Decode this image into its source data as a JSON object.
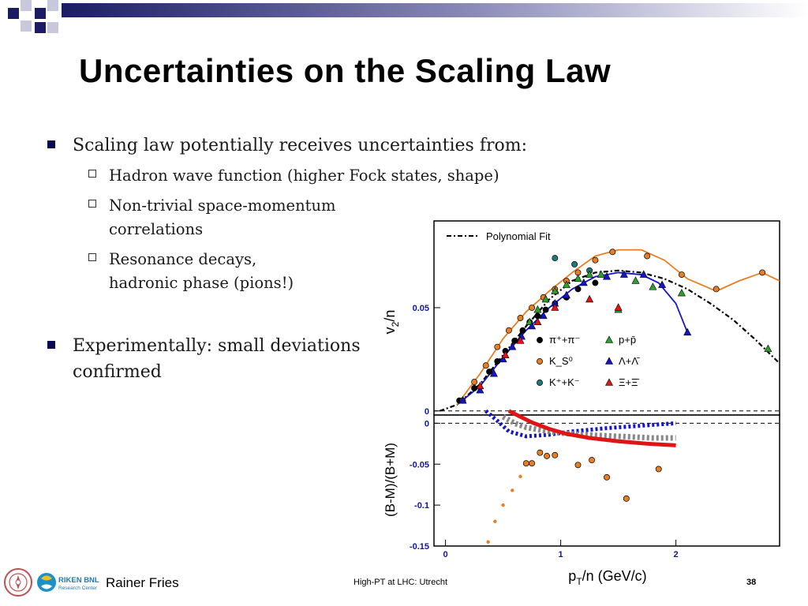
{
  "slide": {
    "title": "Uncertainties on the Scaling Law",
    "bullets": [
      {
        "text": "Scaling law potentially receives uncertainties from:",
        "subs": [
          "Hadron wave function (higher Fock states, shape)",
          [
            "Non-trivial space-momentum",
            "correlations"
          ],
          [
            "Resonance decays,",
            "hadronic phase (pions!)"
          ]
        ]
      },
      {
        "text": [
          "Experimentally: small deviations",
          "confirmed"
        ]
      }
    ]
  },
  "footer": {
    "author": "Rainer Fries",
    "conference": "High-PT at LHC: Utrecht",
    "page": "38",
    "logo_text": "RIKEN BNL",
    "logo_sub": "Research Center"
  },
  "colors": {
    "navy": "#1c1c64",
    "bullet": "#0a0a50",
    "orange": "#e87d22",
    "blue": "#1414c8",
    "green": "#2ca02c",
    "red": "#e01414",
    "teal": "#1e7a78"
  },
  "chart_data": [
    {
      "type": "scatter",
      "panel": "top",
      "ylabel": "v2/n",
      "xlim": [
        -0.1,
        2.9
      ],
      "ylim": [
        -0.002,
        0.092
      ],
      "yticks": [
        0,
        0.05
      ],
      "ytick_labels": [
        "0",
        "0.05"
      ],
      "legend": {
        "fit_label": "Polynomial Fit",
        "entries": [
          "π⁺+π⁻",
          "K_S⁰",
          "K⁺+K⁻",
          "p+p̄",
          "Λ+Λ̄",
          "Ξ+Ξ̄"
        ]
      },
      "series": [
        {
          "name": "π⁺+π⁻",
          "marker": "circle",
          "color": "#000000",
          "x": [
            0.12,
            0.25,
            0.38,
            0.45,
            0.52,
            0.6,
            0.67,
            0.73,
            0.8,
            0.87,
            0.95,
            1.05,
            1.15,
            1.3
          ],
          "y": [
            0.005,
            0.011,
            0.019,
            0.024,
            0.029,
            0.034,
            0.039,
            0.043,
            0.046,
            0.049,
            0.052,
            0.055,
            0.059,
            0.062
          ]
        },
        {
          "name": "K_S⁰",
          "marker": "circle",
          "color": "#e87d22",
          "x": [
            0.15,
            0.25,
            0.35,
            0.45,
            0.55,
            0.65,
            0.75,
            0.85,
            0.95,
            1.05,
            1.15,
            1.3,
            1.45,
            1.75,
            2.05,
            2.35,
            2.75
          ],
          "y": [
            0.005,
            0.014,
            0.022,
            0.031,
            0.039,
            0.045,
            0.05,
            0.055,
            0.059,
            0.063,
            0.067,
            0.073,
            0.077,
            0.075,
            0.066,
            0.059,
            0.067
          ]
        },
        {
          "name": "K⁺+K⁻",
          "marker": "circle",
          "color": "#1e7a78",
          "x": [
            0.95,
            1.12,
            1.25
          ],
          "y": [
            0.074,
            0.071,
            0.068
          ]
        },
        {
          "name": "p+p̄",
          "marker": "triangle",
          "color": "#2ca02c",
          "x": [
            0.73,
            0.8,
            0.87,
            0.95,
            1.05,
            1.15,
            1.25,
            1.35,
            1.5,
            1.65,
            1.8,
            2.05,
            2.8
          ],
          "y": [
            0.043,
            0.049,
            0.054,
            0.058,
            0.061,
            0.064,
            0.066,
            0.066,
            0.049,
            0.063,
            0.06,
            0.057,
            0.03
          ]
        },
        {
          "name": "Λ+Λ̄",
          "marker": "triangle",
          "color": "#1414c8",
          "x": [
            0.15,
            0.3,
            0.42,
            0.5,
            0.58,
            0.66,
            0.75,
            0.85,
            0.95,
            1.05,
            1.2,
            1.4,
            1.55,
            1.72,
            1.88,
            2.1
          ],
          "y": [
            0.005,
            0.01,
            0.018,
            0.025,
            0.031,
            0.036,
            0.041,
            0.046,
            0.052,
            0.056,
            0.062,
            0.065,
            0.066,
            0.066,
            0.061,
            0.038
          ]
        },
        {
          "name": "Ξ+Ξ̄",
          "marker": "triangle",
          "color": "#e01414",
          "x": [
            0.3,
            0.52,
            0.65,
            0.8,
            0.95,
            1.25,
            1.5
          ],
          "y": [
            0.012,
            0.027,
            0.034,
            0.043,
            0.05,
            0.054,
            0.05
          ]
        }
      ],
      "curves": [
        {
          "name": "Polynomial Fit",
          "style": "dash-dot",
          "color": "#000000",
          "x": [
            -0.05,
            0.1,
            0.3,
            0.5,
            0.7,
            0.9,
            1.1,
            1.3,
            1.5,
            1.7,
            1.9,
            2.1,
            2.3,
            2.5,
            2.7,
            2.9
          ],
          "y": [
            0,
            0.003,
            0.013,
            0.027,
            0.041,
            0.054,
            0.063,
            0.067,
            0.068,
            0.067,
            0.064,
            0.059,
            0.052,
            0.044,
            0.034,
            0.023
          ]
        },
        {
          "name": "Λ fit",
          "style": "solid",
          "color": "#1414c8",
          "x": [
            0.1,
            0.3,
            0.5,
            0.7,
            0.9,
            1.1,
            1.3,
            1.5,
            1.7,
            1.85,
            2.0,
            2.1
          ],
          "y": [
            0.003,
            0.012,
            0.026,
            0.039,
            0.05,
            0.059,
            0.065,
            0.067,
            0.066,
            0.062,
            0.052,
            0.038
          ]
        },
        {
          "name": "K fit",
          "style": "solid",
          "color": "#e87d22",
          "x": [
            0.1,
            0.3,
            0.5,
            0.7,
            0.9,
            1.1,
            1.3,
            1.5,
            1.7,
            1.9,
            2.1,
            2.35,
            2.55,
            2.75,
            2.9
          ],
          "y": [
            0.003,
            0.018,
            0.035,
            0.048,
            0.058,
            0.067,
            0.075,
            0.078,
            0.078,
            0.073,
            0.064,
            0.058,
            0.063,
            0.067,
            0.063
          ]
        }
      ],
      "reference_line": {
        "y": 0,
        "style": "dashed"
      }
    },
    {
      "type": "scatter",
      "panel": "bottom",
      "xlabel": "pT/n (GeV/c)",
      "ylabel": "(B-M)/(B+M)",
      "xlim": [
        -0.1,
        2.9
      ],
      "ylim": [
        -0.15,
        0.01
      ],
      "xticks": [
        0,
        1,
        2
      ],
      "xtick_labels": [
        "0",
        "1",
        "2"
      ],
      "yticks": [
        0,
        -0.05,
        -0.1,
        -0.15
      ],
      "ytick_labels": [
        "0",
        "-0.05",
        "-0.1",
        "-0.15"
      ],
      "series": [
        {
          "name": "data",
          "marker": "circle",
          "color": "#e87d22",
          "x": [
            0.7,
            0.75,
            0.82,
            0.88,
            0.95,
            1.15,
            1.27,
            1.4,
            1.57,
            1.85
          ],
          "y": [
            -0.049,
            -0.049,
            -0.036,
            -0.04,
            -0.039,
            -0.051,
            -0.045,
            -0.066,
            -0.092,
            -0.056
          ]
        },
        {
          "name": "dots",
          "marker": "dot",
          "color": "#e87d22",
          "x": [
            0.37,
            0.43,
            0.5,
            0.58,
            0.65
          ],
          "y": [
            -0.145,
            -0.12,
            -0.1,
            -0.082,
            -0.065
          ]
        }
      ],
      "curves": [
        {
          "name": "blue band",
          "style": "dotted",
          "color": "#1414c8",
          "x": [
            0.35,
            0.45,
            0.55,
            0.7,
            0.9,
            1.1,
            1.4,
            1.7,
            2.0
          ],
          "y": [
            0.015,
            0.003,
            -0.01,
            -0.016,
            -0.014,
            -0.01,
            -0.006,
            -0.003,
            0
          ]
        },
        {
          "name": "grey band",
          "style": "dotted",
          "color": "#888888",
          "x": [
            0.5,
            0.6,
            0.7,
            0.85,
            1.0,
            1.2,
            1.5,
            1.8,
            2.0
          ],
          "y": [
            0.008,
            0,
            -0.005,
            -0.009,
            -0.012,
            -0.014,
            -0.016,
            -0.018,
            -0.018
          ]
        },
        {
          "name": "red band",
          "style": "solid",
          "color": "#e01414",
          "x": [
            0.55,
            0.65,
            0.75,
            0.9,
            1.05,
            1.25,
            1.5,
            1.75,
            2.0
          ],
          "y": [
            0.015,
            0.008,
            0.001,
            -0.007,
            -0.013,
            -0.018,
            -0.022,
            -0.025,
            -0.027
          ]
        }
      ],
      "reference_line": {
        "y": 0,
        "style": "dashed"
      }
    }
  ]
}
